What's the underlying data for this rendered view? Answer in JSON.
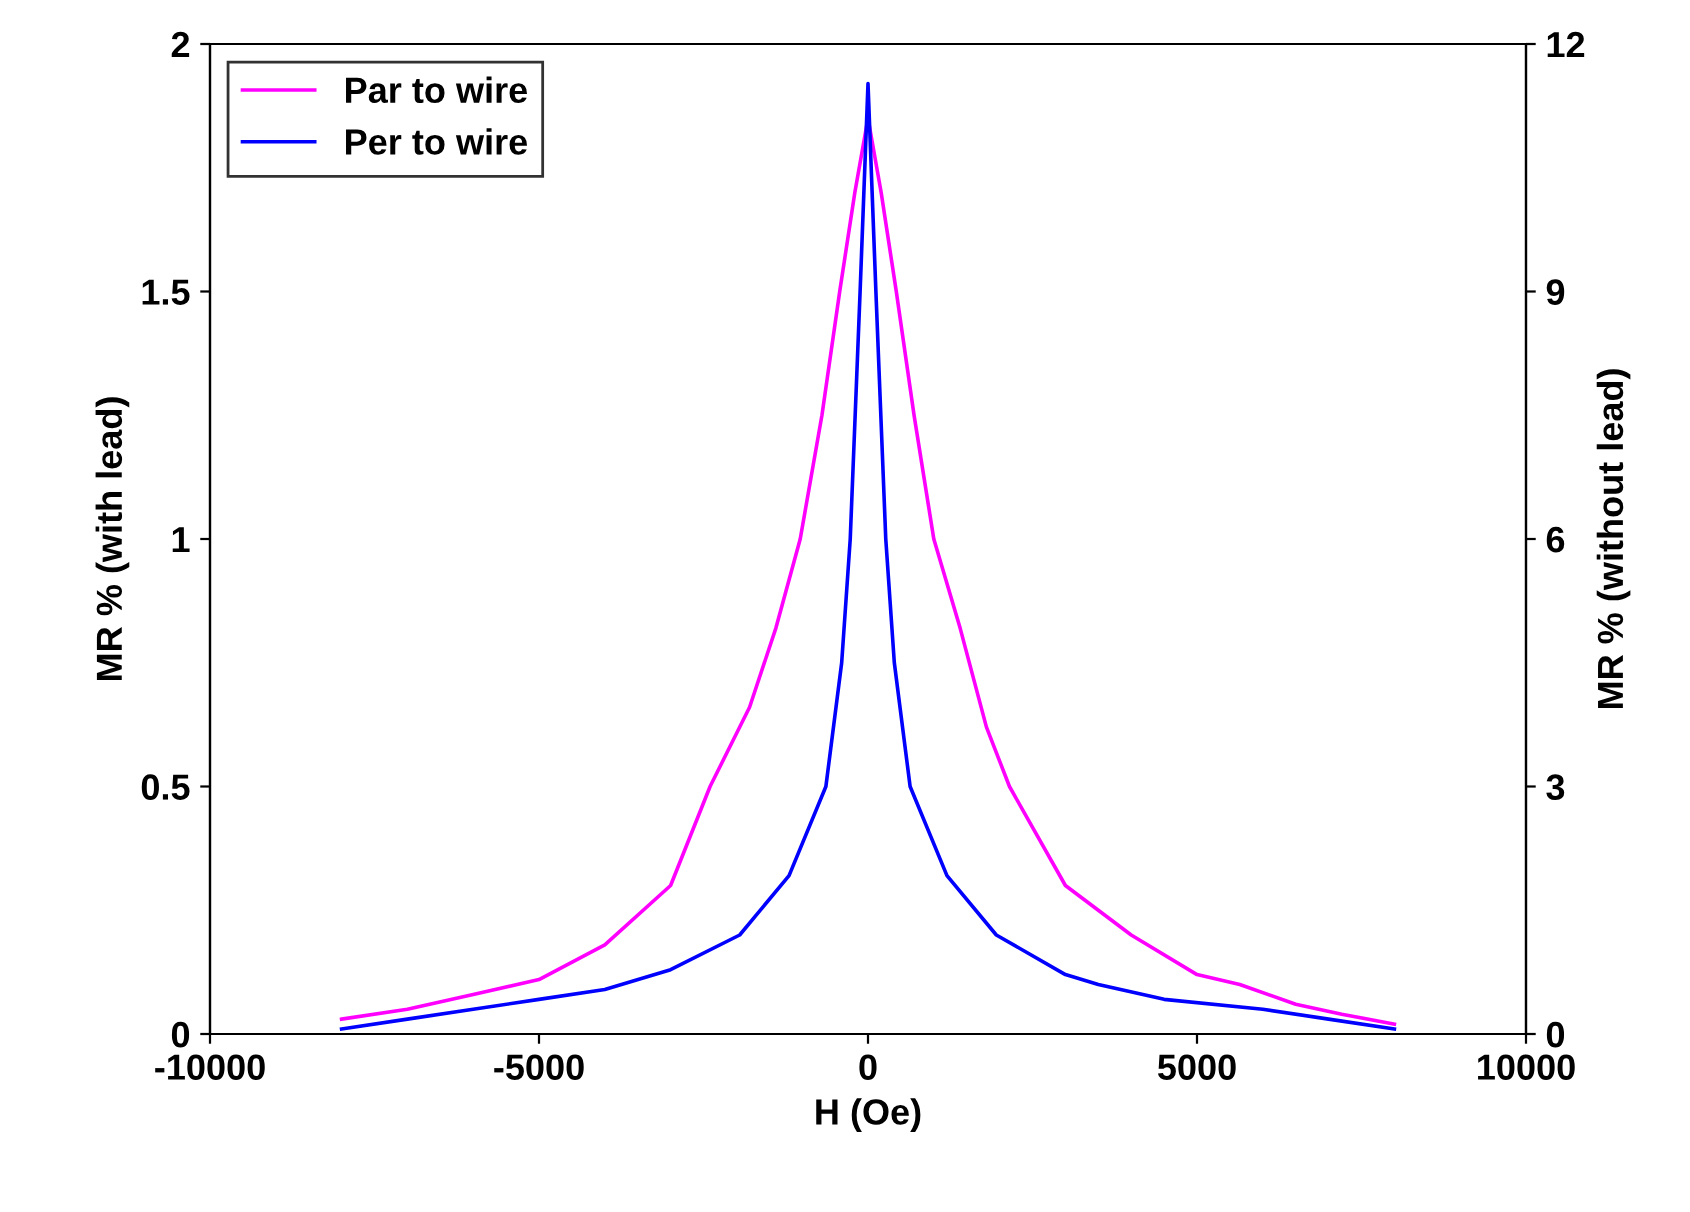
{
  "chart_data": {
    "type": "line",
    "xlabel": "H (Oe)",
    "ylabel": "MR % (with lead)",
    "y2label": "MR % (without lead)",
    "xlim": [
      -10000,
      10000
    ],
    "xticks": [
      -10000,
      -5000,
      0,
      5000,
      10000
    ],
    "ylim": [
      0,
      2
    ],
    "yticks": [
      0,
      0.5,
      1,
      1.5,
      2
    ],
    "y2lim": [
      0,
      12
    ],
    "y2ticks": [
      0,
      3,
      6,
      9,
      12
    ],
    "grid": false,
    "legend": "top left",
    "marker": "none",
    "line_style": "solid",
    "series": [
      {
        "name": "Par to wire",
        "color": "#ff00ff",
        "x": [
          -8000,
          -7000,
          -6000,
          -5000,
          -4000,
          -3000,
          -2400,
          -1800,
          -1400,
          -1030,
          -700,
          -430,
          -200,
          0,
          200,
          430,
          700,
          1000,
          1400,
          1800,
          2150,
          3000,
          4000,
          5000,
          5650,
          6500,
          7200,
          8000
        ],
        "values": [
          0.03,
          0.05,
          0.08,
          0.11,
          0.18,
          0.3,
          0.5,
          0.66,
          0.82,
          1.0,
          1.25,
          1.5,
          1.7,
          1.85,
          1.7,
          1.5,
          1.25,
          1.0,
          0.82,
          0.62,
          0.5,
          0.3,
          0.2,
          0.12,
          0.1,
          0.06,
          0.04,
          0.02
        ]
      },
      {
        "name": "Per to wire",
        "color": "#0000ff",
        "x": [
          -8000,
          -7000,
          -6000,
          -5000,
          -4000,
          -3000,
          -1950,
          -1200,
          -640,
          -400,
          -270,
          -120,
          0,
          120,
          270,
          400,
          640,
          1200,
          1950,
          3000,
          3500,
          4500,
          6000,
          7000,
          8000
        ],
        "values": [
          0.01,
          0.03,
          0.05,
          0.07,
          0.09,
          0.13,
          0.2,
          0.32,
          0.5,
          0.75,
          1.0,
          1.5,
          1.92,
          1.5,
          1.0,
          0.75,
          0.5,
          0.32,
          0.2,
          0.12,
          0.1,
          0.07,
          0.05,
          0.03,
          0.01
        ]
      }
    ]
  }
}
